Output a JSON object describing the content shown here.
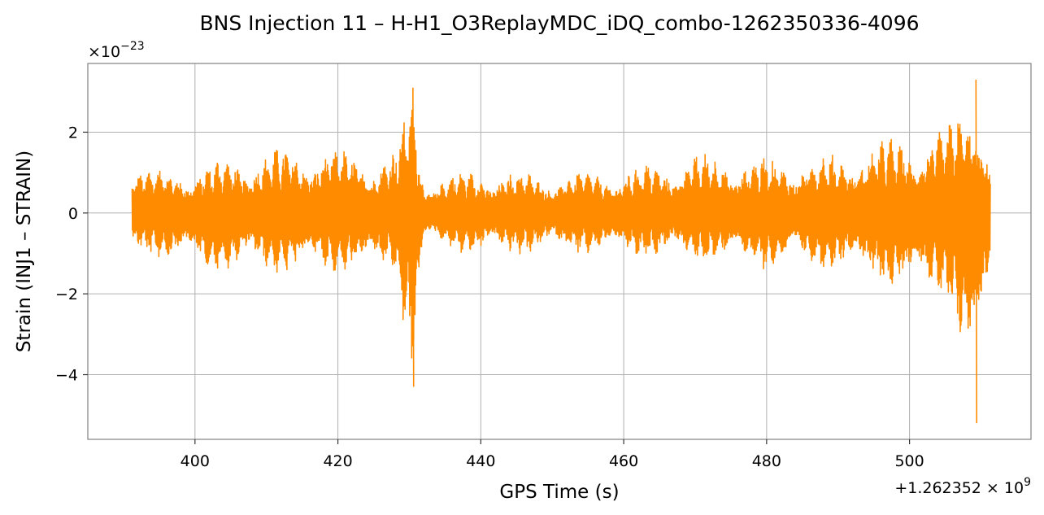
{
  "chart_data": {
    "type": "line",
    "title": "BNS Injection 11 – H-H1_O3ReplayMDC_iDQ_combo-1262350336-4096",
    "xlabel": "GPS Time (s)",
    "ylabel": "Strain (INJ1 – STRAIN)",
    "x_offset_label": "+1.262352×10^9",
    "y_scale_label": "×10^-23",
    "x_offset": 1262352000,
    "y_scale": 1e-23,
    "xlim": [
      385,
      517
    ],
    "ylim": [
      -5.6,
      3.7
    ],
    "x_ticks": [
      400,
      420,
      440,
      460,
      480,
      500
    ],
    "y_ticks": [
      -4,
      -2,
      0,
      2
    ],
    "x_tick_labels": [
      "400",
      "420",
      "440",
      "460",
      "480",
      "500"
    ],
    "y_tick_labels": [
      "−4",
      "−2",
      "0",
      "2"
    ],
    "grid": true,
    "series": [
      {
        "color": "#ff8c00",
        "x_range": [
          391.2,
          511.3
        ],
        "envelope": [
          {
            "x": 391.2,
            "upper": 1.3,
            "lower": -1.1
          },
          {
            "x": 395,
            "upper": 1.1,
            "lower": -1.1
          },
          {
            "x": 400,
            "upper": 1.2,
            "lower": -1.4
          },
          {
            "x": 405,
            "upper": 1.4,
            "lower": -1.5
          },
          {
            "x": 410,
            "upper": 1.6,
            "lower": -1.5
          },
          {
            "x": 415,
            "upper": 1.7,
            "lower": -1.6
          },
          {
            "x": 420,
            "upper": 1.6,
            "lower": -1.5
          },
          {
            "x": 425,
            "upper": 1.5,
            "lower": -1.6
          },
          {
            "x": 428,
            "upper": 1.6,
            "lower": -1.5
          },
          {
            "x": 430.5,
            "upper": 3.1,
            "lower": -4.3
          },
          {
            "x": 432,
            "upper": 0.9,
            "lower": -0.8
          },
          {
            "x": 440,
            "upper": 1.1,
            "lower": -1.1
          },
          {
            "x": 450,
            "upper": 1.0,
            "lower": -1.0
          },
          {
            "x": 460,
            "upper": 1.1,
            "lower": -1.1
          },
          {
            "x": 470,
            "upper": 1.5,
            "lower": -1.2
          },
          {
            "x": 480,
            "upper": 1.4,
            "lower": -1.4
          },
          {
            "x": 490,
            "upper": 1.5,
            "lower": -1.4
          },
          {
            "x": 495,
            "upper": 1.8,
            "lower": -1.8
          },
          {
            "x": 500,
            "upper": 2.0,
            "lower": -2.0
          },
          {
            "x": 505,
            "upper": 2.1,
            "lower": -2.1
          },
          {
            "x": 509.3,
            "upper": 3.3,
            "lower": -5.2
          },
          {
            "x": 511.3,
            "upper": 1.3,
            "lower": -1.3
          }
        ]
      }
    ]
  }
}
